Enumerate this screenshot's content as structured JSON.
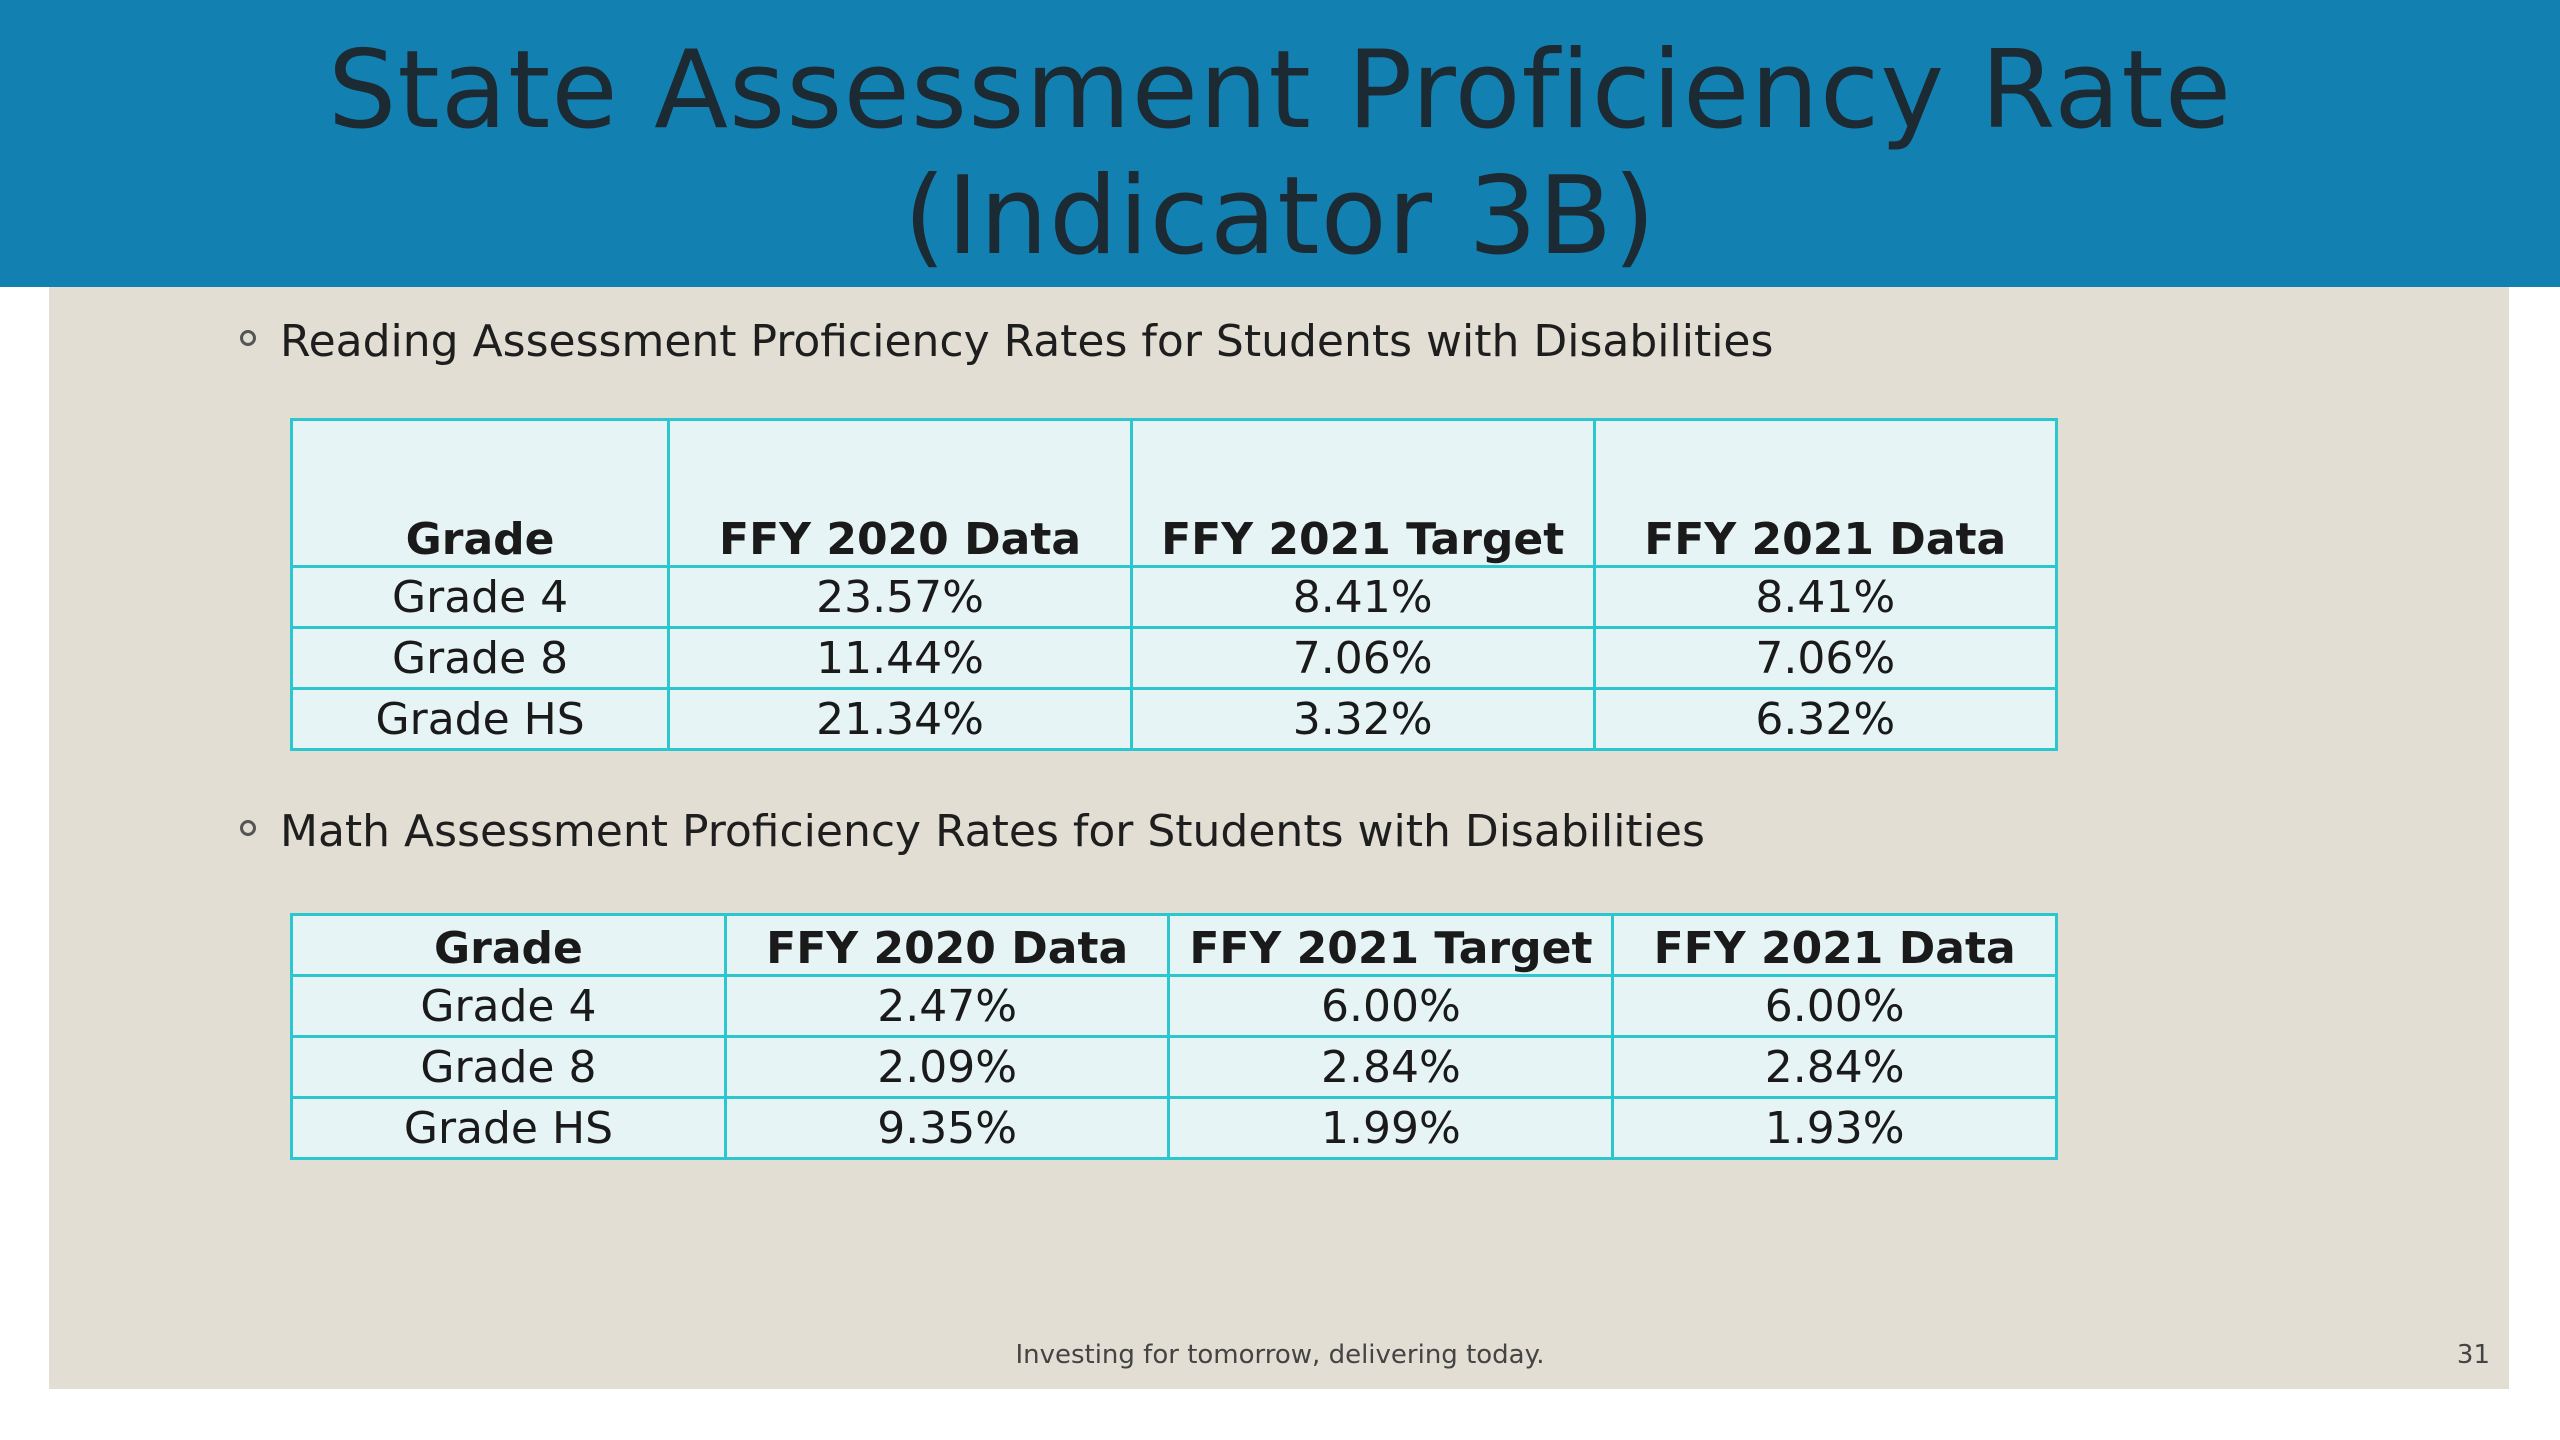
{
  "title": {
    "line1": "State Assessment Proficiency Rate",
    "line2": "(Indicator 3B)"
  },
  "reading": {
    "heading": "Reading Assessment Proficiency Rates for Students with Disabilities",
    "columns": [
      "Grade",
      "FFY 2020 Data",
      "FFY 2021 Target",
      "FFY 2021 Data"
    ],
    "rows": [
      [
        "Grade 4",
        "23.57%",
        "8.41%",
        "8.41%"
      ],
      [
        "Grade 8",
        "11.44%",
        "7.06%",
        "7.06%"
      ],
      [
        "Grade HS",
        "21.34%",
        "3.32%",
        "6.32%"
      ]
    ]
  },
  "math": {
    "heading": "Math Assessment Proficiency Rates for Students with Disabilities",
    "columns": [
      "Grade",
      "FFY 2020 Data",
      "FFY 2021 Target",
      "FFY 2021 Data"
    ],
    "rows": [
      [
        "Grade 4",
        "2.47%",
        "6.00%",
        "6.00%"
      ],
      [
        "Grade 8",
        "2.09%",
        "2.84%",
        "2.84%"
      ],
      [
        "Grade HS",
        "9.35%",
        "1.99%",
        "1.93%"
      ]
    ]
  },
  "footer": {
    "tagline": "Investing for tomorrow, delivering today.",
    "page_number": "31"
  },
  "colors": {
    "title_bar": "#1380b2",
    "content_background": "#e2ded3",
    "table_border": "#2cc6cf",
    "table_fill": "#e6f4f5"
  }
}
